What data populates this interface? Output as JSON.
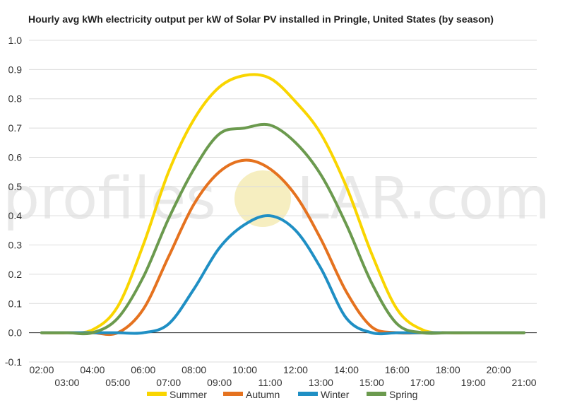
{
  "watermark": {
    "left": "profiles",
    "right": "LAR.com",
    "sun_color": "#f6eec0"
  },
  "chart_data": {
    "type": "line",
    "title": "Hourly avg kWh electricity output per kW of Solar PV installed in Pringle, United States (by season)",
    "xlabel": "",
    "ylabel": "",
    "ylim": [
      -0.1,
      1.0
    ],
    "yticks": [
      "1.0",
      "0.9",
      "0.8",
      "0.7",
      "0.6",
      "0.5",
      "0.4",
      "0.3",
      "0.2",
      "0.1",
      "0.0",
      "-0.1"
    ],
    "yticks_values": [
      1.0,
      0.9,
      0.8,
      0.7,
      0.6,
      0.5,
      0.4,
      0.3,
      0.2,
      0.1,
      0.0,
      -0.1
    ],
    "x": [
      2,
      3,
      4,
      5,
      6,
      7,
      8,
      9,
      10,
      11,
      12,
      13,
      14,
      15,
      16,
      17,
      18,
      19,
      20,
      21
    ],
    "xticks_top": [
      "02:00",
      "04:00",
      "06:00",
      "08:00",
      "10:00",
      "12:00",
      "14:00",
      "16:00",
      "18:00",
      "20:00"
    ],
    "xticks_bottom": [
      "03:00",
      "05:00",
      "07:00",
      "09:00",
      "11:00",
      "13:00",
      "15:00",
      "17:00",
      "19:00",
      "21:00"
    ],
    "grid": true,
    "legend": "bottom",
    "series": [
      {
        "name": "Summer",
        "color": "#f9d500",
        "values": [
          0.0,
          0.0,
          0.01,
          0.09,
          0.3,
          0.55,
          0.73,
          0.84,
          0.88,
          0.87,
          0.79,
          0.68,
          0.5,
          0.27,
          0.08,
          0.01,
          0.0,
          0.0,
          0.0,
          0.0
        ]
      },
      {
        "name": "Autumn",
        "color": "#e5721f",
        "values": [
          0.0,
          0.0,
          0.0,
          0.0,
          0.08,
          0.26,
          0.44,
          0.55,
          0.59,
          0.56,
          0.47,
          0.32,
          0.14,
          0.02,
          0.0,
          0.0,
          0.0,
          0.0,
          0.0,
          0.0
        ]
      },
      {
        "name": "Winter",
        "color": "#1f8fc4",
        "values": [
          0.0,
          0.0,
          0.0,
          0.0,
          0.0,
          0.03,
          0.15,
          0.29,
          0.37,
          0.4,
          0.35,
          0.22,
          0.05,
          0.0,
          0.0,
          0.0,
          0.0,
          0.0,
          0.0,
          0.0
        ]
      },
      {
        "name": "Spring",
        "color": "#6b9a4e",
        "values": [
          0.0,
          0.0,
          0.0,
          0.05,
          0.19,
          0.39,
          0.56,
          0.68,
          0.7,
          0.71,
          0.65,
          0.54,
          0.37,
          0.17,
          0.03,
          0.0,
          0.0,
          0.0,
          0.0,
          0.0
        ]
      }
    ]
  }
}
